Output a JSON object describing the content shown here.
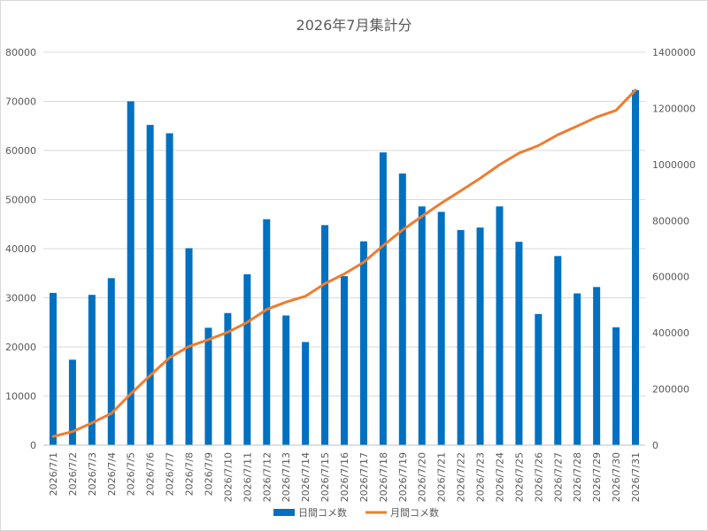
{
  "chart_data": {
    "type": "bar",
    "title": "2026年7月集計分",
    "categories": [
      "2026/7/1",
      "2026/7/2",
      "2026/7/3",
      "2026/7/4",
      "2026/7/5",
      "2026/7/6",
      "2026/7/7",
      "2026/7/8",
      "2026/7/9",
      "2026/7/10",
      "2026/7/11",
      "2026/7/12",
      "2026/7/13",
      "2026/7/14",
      "2026/7/15",
      "2026/7/16",
      "2026/7/17",
      "2026/7/18",
      "2026/7/19",
      "2026/7/20",
      "2026/7/21",
      "2026/7/22",
      "2026/7/23",
      "2026/7/24",
      "2026/7/25",
      "2026/7/26",
      "2026/7/27",
      "2026/7/28",
      "2026/7/29",
      "2026/7/30",
      "2026/7/31"
    ],
    "series": [
      {
        "name": "日間コメ数",
        "type": "bar",
        "axis": "left",
        "color": "#0070c0",
        "values": [
          31000,
          17400,
          30600,
          34000,
          70000,
          65200,
          63500,
          40100,
          23900,
          26900,
          34800,
          46000,
          26400,
          21000,
          44800,
          34400,
          41500,
          59600,
          55300,
          48600,
          47500,
          43800,
          44300,
          48600,
          41400,
          26700,
          38500,
          30900,
          32200,
          24000,
          72300
        ]
      },
      {
        "name": "月間コメ数",
        "type": "line",
        "axis": "right",
        "color": "#ed7d31",
        "values": [
          31000,
          48400,
          79000,
          113000,
          183000,
          248200,
          311700,
          351800,
          375700,
          402600,
          437400,
          483400,
          509800,
          530800,
          575600,
          610000,
          651500,
          711100,
          766400,
          815000,
          862500,
          906300,
          950600,
          999200,
          1040600,
          1067300,
          1105800,
          1136700,
          1168900,
          1192900,
          1265200
        ]
      }
    ],
    "y_left": {
      "min": 0,
      "max": 80000,
      "step": 10000,
      "ticks": [
        "0",
        "10000",
        "20000",
        "30000",
        "40000",
        "50000",
        "60000",
        "70000",
        "80000"
      ]
    },
    "y_right": {
      "min": 0,
      "max": 1400000,
      "step": 200000,
      "ticks": [
        "0",
        "200000",
        "400000",
        "600000",
        "800000",
        "1000000",
        "1200000",
        "1400000"
      ]
    },
    "grid": true,
    "legend": "bottom"
  }
}
